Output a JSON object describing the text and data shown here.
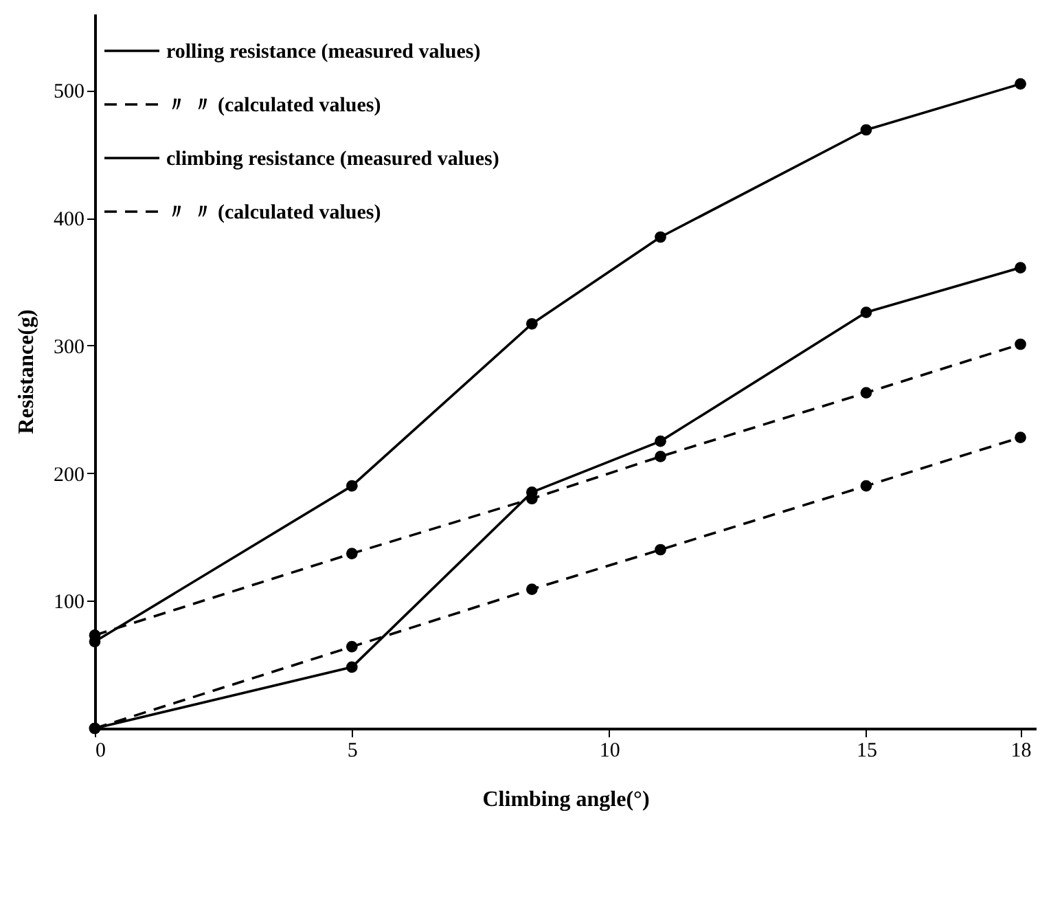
{
  "chart_data": {
    "type": "line",
    "xlabel": "Climbing angle(°)",
    "ylabel": "Resistance(g)",
    "xlim": [
      0,
      18.3
    ],
    "xticks": [
      0,
      5,
      10,
      15,
      18
    ],
    "ylim": [
      0,
      560
    ],
    "yticks": [
      100,
      200,
      300,
      400,
      500
    ],
    "grid": false,
    "legend": "top left",
    "marker": "circle",
    "series": [
      {
        "name": "rolling resistance  (measured values)",
        "color": "#000000",
        "line_style": "solid",
        "x": [
          0,
          5,
          8.5,
          11,
          15,
          18
        ],
        "values": [
          68,
          190,
          317,
          385,
          469,
          505
        ]
      },
      {
        "name": "〃        〃     (calculated values)",
        "color": "#000000",
        "line_style": "dashed",
        "x": [
          0,
          5,
          8.5,
          11,
          15,
          18
        ],
        "values": [
          73,
          137,
          180,
          213,
          263,
          301
        ]
      },
      {
        "name": "climbing resistance (measured values)",
        "color": "#000000",
        "line_style": "solid",
        "x": [
          0,
          5,
          8.5,
          11,
          15,
          18
        ],
        "values": [
          0,
          48,
          185,
          225,
          326,
          361
        ]
      },
      {
        "name": "〃        〃     (calculated values)",
        "color": "#000000",
        "line_style": "dashed",
        "x": [
          0,
          5,
          8.5,
          11,
          15,
          18
        ],
        "values": [
          0,
          64,
          109,
          140,
          190,
          228
        ]
      }
    ]
  }
}
